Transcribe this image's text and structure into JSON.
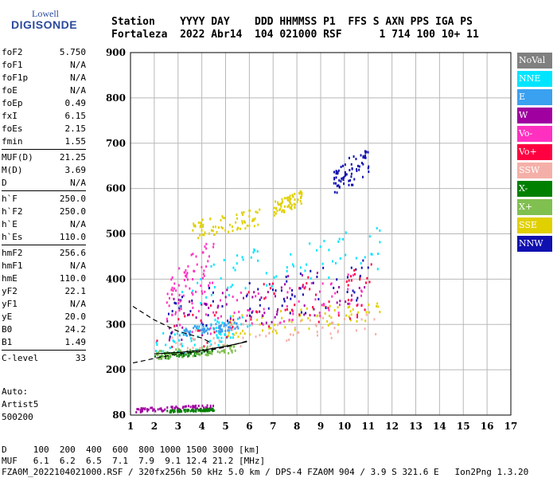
{
  "logo": {
    "line1": "Lowell",
    "line2": "DIGISONDE"
  },
  "header": {
    "line1": "Station    YYYY DAY    DDD HHMMSS P1  FFS S AXN PPS IGA PS",
    "line2": "Fortaleza  2022 Abr14  104 021000 RSF      1 714 100 10+ 11"
  },
  "params": {
    "group1": [
      {
        "label": "foF2",
        "value": "5.750"
      },
      {
        "label": "foF1",
        "value": "N/A"
      },
      {
        "label": "foF1p",
        "value": "N/A"
      },
      {
        "label": "foE",
        "value": "N/A"
      },
      {
        "label": "foEp",
        "value": "0.49"
      },
      {
        "label": "fxI",
        "value": "6.15"
      },
      {
        "label": "foEs",
        "value": "2.15"
      },
      {
        "label": "fmin",
        "value": "1.55"
      }
    ],
    "group2": [
      {
        "label": "MUF(D)",
        "value": "21.25"
      },
      {
        "label": "M(D)",
        "value": "3.69"
      },
      {
        "label": "D",
        "value": "N/A"
      }
    ],
    "group3": [
      {
        "label": "h`F",
        "value": "250.0"
      },
      {
        "label": "h`F2",
        "value": "250.0"
      },
      {
        "label": "h`E",
        "value": "N/A"
      },
      {
        "label": "h`Es",
        "value": "110.0"
      }
    ],
    "group4": [
      {
        "label": "hmF2",
        "value": "256.6"
      },
      {
        "label": "hmF1",
        "value": "N/A"
      },
      {
        "label": "hmE",
        "value": "110.0"
      },
      {
        "label": "yF2",
        "value": "22.1"
      },
      {
        "label": "yF1",
        "value": "N/A"
      },
      {
        "label": "yE",
        "value": "20.0"
      },
      {
        "label": "B0",
        "value": "24.2"
      },
      {
        "label": "B1",
        "value": "1.49"
      }
    ],
    "group5": [
      {
        "label": "C-level",
        "value": "33"
      }
    ]
  },
  "auto": {
    "line1": "Auto:",
    "line2": "Artist5",
    "line3": "500200"
  },
  "legend": [
    {
      "label": "NoVal",
      "color": "#808080"
    },
    {
      "label": "NNE",
      "color": "#00e5ff"
    },
    {
      "label": "E",
      "color": "#3aa0f0"
    },
    {
      "label": "W",
      "color": "#a000a0"
    },
    {
      "label": "Vo-",
      "color": "#ff30c0"
    },
    {
      "label": "Vo+",
      "color": "#ff0040"
    },
    {
      "label": "SSW",
      "color": "#f4b0a8"
    },
    {
      "label": "X-",
      "color": "#008000"
    },
    {
      "label": "X+",
      "color": "#80c050"
    },
    {
      "label": "SSE",
      "color": "#e0d000"
    },
    {
      "label": "NNW",
      "color": "#1010b0"
    }
  ],
  "footer": {
    "line1": "D     100  200  400  600  800 1000 1500 3000 [km]",
    "line2": "MUF   6.1  6.2  6.5  7.1  7.9  9.1 12.4 21.2 [MHz]",
    "line3": "FZA0M_2022104021000.RSF / 320fx256h 50 kHz 5.0 km / DPS-4 FZA0M 904 / 3.9 S 321.6 E   Ion2Png 1.3.20"
  },
  "chart_data": {
    "type": "scatter",
    "xlim": [
      1,
      17
    ],
    "ylim": [
      80,
      900
    ],
    "xticks": [
      "1",
      "2",
      "3",
      "4",
      "5",
      "6",
      "7",
      "8",
      "9",
      "10",
      "11",
      "12",
      "13",
      "14",
      "15",
      "16",
      "17"
    ],
    "yticks": [
      "80",
      "200",
      "300",
      "400",
      "500",
      "600",
      "700",
      "800",
      "900"
    ],
    "ytick_values": [
      80,
      200,
      300,
      400,
      500,
      600,
      700,
      800,
      900
    ],
    "grid": true,
    "legend_placement": "right",
    "clusters": [
      {
        "series": "NNE",
        "x": [
          2.0,
          6.0
        ],
        "y": [
          225,
          330
        ]
      },
      {
        "series": "SSW",
        "x": [
          2.5,
          11.5
        ],
        "y": [
          240,
          330
        ]
      },
      {
        "series": "SSE",
        "x": [
          5.0,
          11.5
        ],
        "y": [
          270,
          360
        ]
      },
      {
        "series": "Vo-",
        "x": [
          3.0,
          11.0
        ],
        "y": [
          270,
          420
        ]
      },
      {
        "series": "Vo+",
        "x": [
          2.0,
          11.2
        ],
        "y": [
          230,
          440
        ]
      },
      {
        "series": "W",
        "x": [
          2.5,
          11.0
        ],
        "y": [
          260,
          450
        ]
      },
      {
        "series": "NNW",
        "x": [
          2.5,
          11.0
        ],
        "y": [
          270,
          450
        ]
      },
      {
        "series": "X-",
        "x": [
          2.0,
          4.5
        ],
        "y": [
          225,
          250
        ]
      },
      {
        "series": "X+",
        "x": [
          2.0,
          5.5
        ],
        "y": [
          225,
          260
        ]
      },
      {
        "series": "E",
        "x": [
          3.0,
          5.5
        ],
        "y": [
          275,
          310
        ]
      },
      {
        "series": "NNE",
        "x": [
          3.0,
          11.5
        ],
        "y": [
          340,
          530
        ]
      },
      {
        "series": "SSE",
        "x": [
          3.5,
          6.5
        ],
        "y": [
          490,
          560
        ]
      },
      {
        "series": "SSE",
        "x": [
          7.0,
          8.2
        ],
        "y": [
          540,
          600
        ]
      },
      {
        "series": "NNW",
        "x": [
          9.5,
          11.0
        ],
        "y": [
          580,
          700
        ]
      },
      {
        "series": "Vo-",
        "x": [
          2.5,
          4.5
        ],
        "y": [
          300,
          500
        ]
      },
      {
        "series": "W",
        "x": [
          1.2,
          4.5
        ],
        "y": [
          90,
          110
        ]
      },
      {
        "series": "X-",
        "x": [
          2.5,
          4.5
        ],
        "y": [
          90,
          100
        ]
      }
    ],
    "curves": [
      {
        "style": "dashed",
        "x": [
          1.1,
          2.0,
          3.0,
          4.0,
          4.3
        ],
        "y": [
          340,
          310,
          285,
          270,
          262
        ]
      },
      {
        "style": "dashed",
        "x": [
          1.1,
          2.0,
          3.0,
          4.0,
          5.0,
          6.0
        ],
        "y": [
          215,
          225,
          235,
          240,
          250,
          265
        ]
      },
      {
        "style": "solid",
        "x": [
          2.0,
          3.0,
          4.0,
          5.0,
          5.9
        ],
        "y": [
          235,
          238,
          243,
          252,
          262
        ]
      }
    ]
  }
}
